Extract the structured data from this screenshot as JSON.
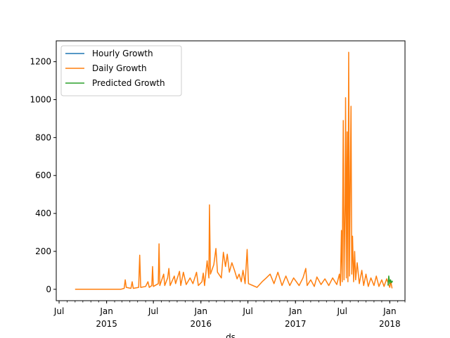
{
  "chart_data": {
    "type": "line",
    "title": "",
    "xlabel": "ds",
    "ylabel": "",
    "x_axis": {
      "type": "date",
      "range": [
        "2014-06-20",
        "2018-03-01"
      ],
      "major_ticks": [
        {
          "date": "2014-07-01",
          "label": "Jul",
          "sublabel": ""
        },
        {
          "date": "2015-01-01",
          "label": "Jan",
          "sublabel": "2015"
        },
        {
          "date": "2015-07-01",
          "label": "Jul",
          "sublabel": ""
        },
        {
          "date": "2016-01-01",
          "label": "Jan",
          "sublabel": "2016"
        },
        {
          "date": "2016-07-01",
          "label": "Jul",
          "sublabel": ""
        },
        {
          "date": "2017-01-01",
          "label": "Jan",
          "sublabel": "2017"
        },
        {
          "date": "2017-07-01",
          "label": "Jul",
          "sublabel": ""
        },
        {
          "date": "2018-01-01",
          "label": "Jan",
          "sublabel": "2018"
        }
      ],
      "minor_ticks": "monthly"
    },
    "y_axis": {
      "range": [
        -60,
        1310
      ],
      "ticks": [
        0,
        200,
        400,
        600,
        800,
        1000,
        1200
      ]
    },
    "grid": false,
    "legend": {
      "position": "top-left",
      "entries": [
        "Hourly Growth",
        "Daily Growth",
        "Predicted Growth"
      ]
    },
    "series": [
      {
        "name": "Hourly Growth",
        "color": "#1f77b4",
        "points": []
      },
      {
        "name": "Daily Growth",
        "color": "#ff7f0e",
        "points": [
          [
            "2014-09-01",
            0
          ],
          [
            "2014-10-15",
            0
          ],
          [
            "2014-12-01",
            0
          ],
          [
            "2015-01-15",
            0
          ],
          [
            "2015-02-25",
            0
          ],
          [
            "2015-03-10",
            5
          ],
          [
            "2015-03-14",
            50
          ],
          [
            "2015-03-18",
            10
          ],
          [
            "2015-04-05",
            5
          ],
          [
            "2015-04-10",
            40
          ],
          [
            "2015-04-14",
            5
          ],
          [
            "2015-05-05",
            10
          ],
          [
            "2015-05-09",
            180
          ],
          [
            "2015-05-13",
            10
          ],
          [
            "2015-06-01",
            15
          ],
          [
            "2015-06-10",
            40
          ],
          [
            "2015-06-15",
            10
          ],
          [
            "2015-06-25",
            20
          ],
          [
            "2015-06-28",
            120
          ],
          [
            "2015-07-01",
            15
          ],
          [
            "2015-07-20",
            30
          ],
          [
            "2015-07-23",
            240
          ],
          [
            "2015-07-26",
            20
          ],
          [
            "2015-08-10",
            80
          ],
          [
            "2015-08-14",
            20
          ],
          [
            "2015-08-25",
            60
          ],
          [
            "2015-08-30",
            110
          ],
          [
            "2015-09-04",
            20
          ],
          [
            "2015-09-20",
            70
          ],
          [
            "2015-09-25",
            30
          ],
          [
            "2015-10-10",
            95
          ],
          [
            "2015-10-15",
            20
          ],
          [
            "2015-10-25",
            90
          ],
          [
            "2015-11-05",
            25
          ],
          [
            "2015-11-20",
            60
          ],
          [
            "2015-12-01",
            30
          ],
          [
            "2015-12-15",
            90
          ],
          [
            "2015-12-22",
            20
          ],
          [
            "2016-01-05",
            40
          ],
          [
            "2016-01-10",
            85
          ],
          [
            "2016-01-15",
            20
          ],
          [
            "2016-01-25",
            150
          ],
          [
            "2016-02-01",
            60
          ],
          [
            "2016-02-03",
            445
          ],
          [
            "2016-02-07",
            80
          ],
          [
            "2016-02-20",
            130
          ],
          [
            "2016-02-28",
            215
          ],
          [
            "2016-03-05",
            90
          ],
          [
            "2016-03-20",
            60
          ],
          [
            "2016-03-28",
            195
          ],
          [
            "2016-04-05",
            120
          ],
          [
            "2016-04-12",
            185
          ],
          [
            "2016-04-20",
            90
          ],
          [
            "2016-04-30",
            140
          ],
          [
            "2016-05-10",
            100
          ],
          [
            "2016-05-20",
            55
          ],
          [
            "2016-05-28",
            80
          ],
          [
            "2016-06-05",
            40
          ],
          [
            "2016-06-12",
            100
          ],
          [
            "2016-06-20",
            30
          ],
          [
            "2016-06-28",
            210
          ],
          [
            "2016-07-03",
            30
          ],
          [
            "2016-07-20",
            20
          ],
          [
            "2016-08-05",
            10
          ],
          [
            "2016-08-25",
            40
          ],
          [
            "2016-09-10",
            60
          ],
          [
            "2016-09-25",
            80
          ],
          [
            "2016-10-10",
            30
          ],
          [
            "2016-10-25",
            90
          ],
          [
            "2016-11-10",
            20
          ],
          [
            "2016-11-25",
            70
          ],
          [
            "2016-12-10",
            20
          ],
          [
            "2016-12-25",
            60
          ],
          [
            "2017-01-15",
            20
          ],
          [
            "2017-01-30",
            60
          ],
          [
            "2017-02-10",
            110
          ],
          [
            "2017-02-15",
            20
          ],
          [
            "2017-03-01",
            50
          ],
          [
            "2017-03-15",
            15
          ],
          [
            "2017-03-25",
            65
          ],
          [
            "2017-04-10",
            25
          ],
          [
            "2017-04-25",
            55
          ],
          [
            "2017-05-10",
            20
          ],
          [
            "2017-05-25",
            60
          ],
          [
            "2017-06-10",
            25
          ],
          [
            "2017-06-20",
            80
          ],
          [
            "2017-06-24",
            20
          ],
          [
            "2017-06-28",
            310
          ],
          [
            "2017-07-01",
            40
          ],
          [
            "2017-07-05",
            890
          ],
          [
            "2017-07-08",
            50
          ],
          [
            "2017-07-12",
            450
          ],
          [
            "2017-07-14",
            1010
          ],
          [
            "2017-07-17",
            60
          ],
          [
            "2017-07-20",
            830
          ],
          [
            "2017-07-23",
            40
          ],
          [
            "2017-07-26",
            1250
          ],
          [
            "2017-07-29",
            70
          ],
          [
            "2017-08-01",
            550
          ],
          [
            "2017-08-04",
            965
          ],
          [
            "2017-08-07",
            80
          ],
          [
            "2017-08-10",
            280
          ],
          [
            "2017-08-14",
            40
          ],
          [
            "2017-08-18",
            200
          ],
          [
            "2017-08-22",
            50
          ],
          [
            "2017-08-28",
            140
          ],
          [
            "2017-09-05",
            30
          ],
          [
            "2017-09-15",
            100
          ],
          [
            "2017-09-22",
            20
          ],
          [
            "2017-10-01",
            80
          ],
          [
            "2017-10-10",
            15
          ],
          [
            "2017-10-20",
            60
          ],
          [
            "2017-11-01",
            20
          ],
          [
            "2017-11-10",
            70
          ],
          [
            "2017-11-20",
            15
          ],
          [
            "2017-12-01",
            50
          ],
          [
            "2017-12-10",
            15
          ],
          [
            "2017-12-20",
            55
          ],
          [
            "2018-01-01",
            10
          ],
          [
            "2018-01-05",
            40
          ],
          [
            "2018-01-10",
            5
          ]
        ]
      },
      {
        "name": "Predicted Growth",
        "color": "#2ca02c",
        "points": [
          [
            "2017-12-25",
            20
          ],
          [
            "2017-12-28",
            70
          ],
          [
            "2018-01-01",
            30
          ],
          [
            "2018-01-04",
            50
          ],
          [
            "2018-01-08",
            35
          ],
          [
            "2018-01-12",
            45
          ]
        ]
      }
    ]
  }
}
